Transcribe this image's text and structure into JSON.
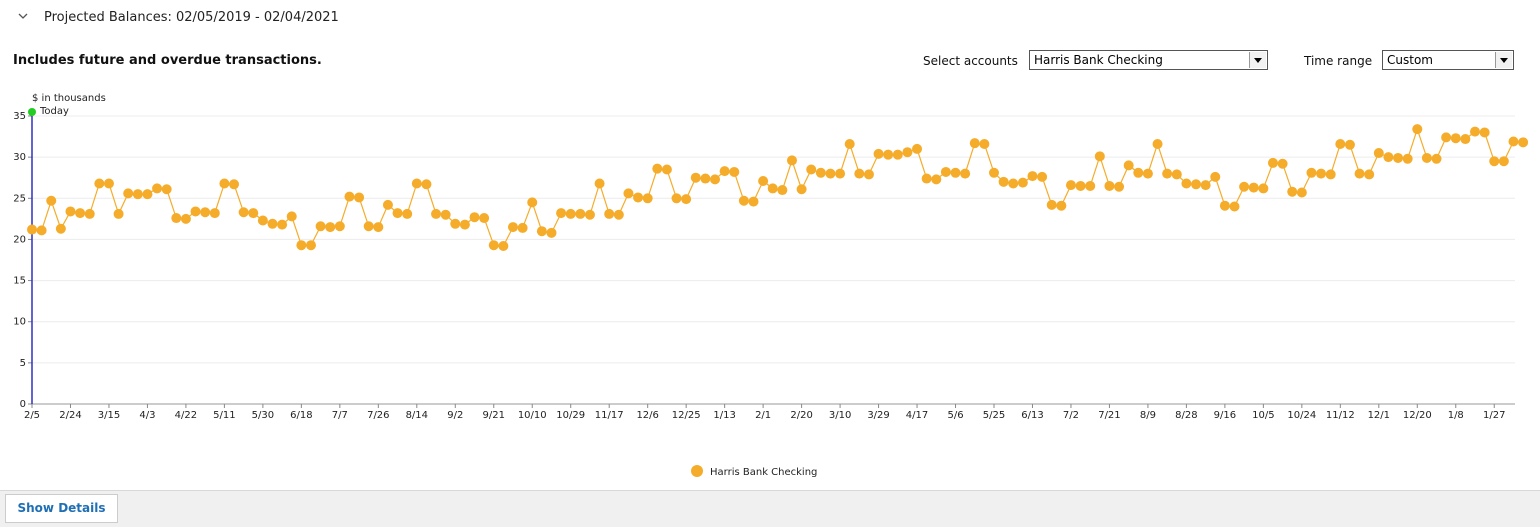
{
  "header": {
    "title": "Projected Balances: 02/05/2019 - 02/04/2021"
  },
  "subtitle": "Includes future and overdue transactions.",
  "controls": {
    "accounts_label": "Select accounts",
    "accounts_value": "Harris Bank Checking",
    "range_label": "Time range",
    "range_value": "Custom"
  },
  "chart_data": {
    "type": "line",
    "y_label": "$ in thousands",
    "annotations": [
      "Today"
    ],
    "categories": [
      "2/5",
      null,
      null,
      null,
      "2/24",
      null,
      null,
      null,
      "3/15",
      null,
      null,
      null,
      "4/3",
      null,
      null,
      null,
      "4/22",
      null,
      null,
      null,
      "5/11",
      null,
      null,
      null,
      "5/30",
      null,
      null,
      null,
      "6/18",
      null,
      null,
      null,
      "7/7",
      null,
      null,
      null,
      "7/26",
      null,
      null,
      null,
      "8/14",
      null,
      null,
      null,
      "9/2",
      null,
      null,
      null,
      "9/21",
      null,
      null,
      null,
      "10/10",
      null,
      null,
      null,
      "10/29",
      null,
      null,
      null,
      "11/17",
      null,
      null,
      null,
      "12/6",
      null,
      null,
      null,
      "12/25",
      null,
      null,
      null,
      "1/13",
      null,
      null,
      null,
      "2/1",
      null,
      null,
      null,
      "2/20",
      null,
      null,
      null,
      "3/10",
      null,
      null,
      null,
      "3/29",
      null,
      null,
      null,
      "4/17",
      null,
      null,
      null,
      "5/6",
      null,
      null,
      null,
      "5/25",
      null,
      null,
      null,
      "6/13",
      null,
      null,
      null,
      "7/2",
      null,
      null,
      null,
      "7/21",
      null,
      null,
      null,
      "8/9",
      null,
      null,
      null,
      "8/28",
      null,
      null,
      null,
      "9/16",
      null,
      null,
      null,
      "10/5",
      null,
      null,
      null,
      "10/24",
      null,
      null,
      null,
      "11/12",
      null,
      null,
      null,
      "12/1",
      null,
      null,
      null,
      "12/20",
      null,
      null,
      null,
      "1/8",
      null,
      null,
      null,
      "1/27",
      null,
      null,
      null
    ],
    "series": [
      {
        "name": "Harris Bank Checking",
        "color": "#f5ac2a",
        "values": [
          21.2,
          21.1,
          24.7,
          21.3,
          23.4,
          23.2,
          23.1,
          26.8,
          26.8,
          23.1,
          25.6,
          25.5,
          25.5,
          26.2,
          26.1,
          22.6,
          22.5,
          23.4,
          23.3,
          23.2,
          26.8,
          26.7,
          23.3,
          23.2,
          22.3,
          21.9,
          21.8,
          22.8,
          19.3,
          19.3,
          21.6,
          21.5,
          21.6,
          25.2,
          25.1,
          21.6,
          21.5,
          24.2,
          23.2,
          23.1,
          26.8,
          26.7,
          23.1,
          23.0,
          21.9,
          21.8,
          22.7,
          22.6,
          19.3,
          19.2,
          21.5,
          21.4,
          24.5,
          21.0,
          20.8,
          23.2,
          23.1,
          23.1,
          23.0,
          26.8,
          23.1,
          23.0,
          25.6,
          25.1,
          25.0,
          28.6,
          28.5,
          25.0,
          24.9,
          27.5,
          27.4,
          27.3,
          28.3,
          28.2,
          24.7,
          24.6,
          27.1,
          26.2,
          26.0,
          29.6,
          26.1,
          28.5,
          28.1,
          28.0,
          28.0,
          31.6,
          28.0,
          27.9,
          30.4,
          30.3,
          30.3,
          30.6,
          31.0,
          27.4,
          27.3,
          28.2,
          28.1,
          28.0,
          31.7,
          31.6,
          28.1,
          27.0,
          26.8,
          26.9,
          27.7,
          27.6,
          24.2,
          24.1,
          26.6,
          26.5,
          26.5,
          30.1,
          26.5,
          26.4,
          29.0,
          28.1,
          28.0,
          31.6,
          28.0,
          27.9,
          26.8,
          26.7,
          26.6,
          27.6,
          24.1,
          24.0,
          26.4,
          26.3,
          26.2,
          29.3,
          29.2,
          25.8,
          25.7,
          28.1,
          28.0,
          27.9,
          31.6,
          31.5,
          28.0,
          27.9,
          30.5,
          30.0,
          29.9,
          29.8,
          33.4,
          29.9,
          29.8,
          32.4,
          32.3,
          32.2,
          33.1,
          33.0,
          29.5,
          29.5,
          31.9,
          31.8
        ]
      }
    ],
    "ylim": [
      0,
      35
    ],
    "yticks": [
      0,
      5,
      10,
      15,
      20,
      25,
      30,
      35
    ],
    "grid": true,
    "legend": "bottom"
  },
  "footer": {
    "button": "Show Details"
  }
}
